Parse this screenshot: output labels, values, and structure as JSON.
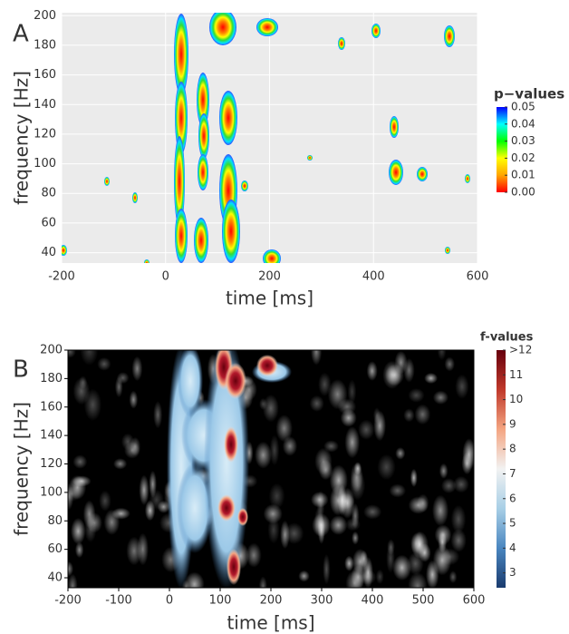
{
  "chart_data": [
    {
      "type": "heatmap",
      "panel": "A",
      "xlabel": "time [ms]",
      "ylabel": "frequency [Hz]",
      "xlim": [
        -200,
        600
      ],
      "xticks": [
        -200,
        0,
        200,
        400,
        600
      ],
      "ylim": [
        33,
        202
      ],
      "yticks": [
        40,
        60,
        80,
        100,
        120,
        140,
        160,
        180,
        200
      ],
      "grid": true,
      "background": "#ebebeb",
      "colorbar": {
        "title": "p−values",
        "lim": [
          0,
          0.05
        ],
        "ticks": [
          {
            "value": 0,
            "label": "0.00"
          },
          0.01,
          0.02,
          0.03,
          0.04,
          0.05
        ],
        "colors": [
          "#ff0000",
          "#ffa500",
          "#ffff00",
          "#00ff00",
          "#00ffff",
          "#0000ff"
        ]
      }
    },
    {
      "type": "heatmap",
      "panel": "B",
      "xlabel": "time [ms]",
      "ylabel": "frequency [Hz]",
      "xlim": [
        -200,
        600
      ],
      "xticks": [
        -200,
        -100,
        0,
        100,
        200,
        300,
        400,
        500,
        600
      ],
      "ylim": [
        33,
        200
      ],
      "yticks": [
        40,
        60,
        80,
        100,
        120,
        140,
        160,
        180,
        200
      ],
      "grid": false,
      "background": "#000000",
      "colorbar": {
        "title": "f-values",
        "lim": [
          2.4,
          12
        ],
        "ticks": [
          3,
          4,
          5,
          6,
          7,
          8,
          9,
          10,
          11,
          {
            "value": 12,
            "label": ">12"
          }
        ],
        "colors": [
          "#1a3b6e",
          "#4a86c0",
          "#a8cfe6",
          "#f2f2f2",
          "#f4a582",
          "#c0392b",
          "#67000d"
        ]
      }
    }
  ]
}
